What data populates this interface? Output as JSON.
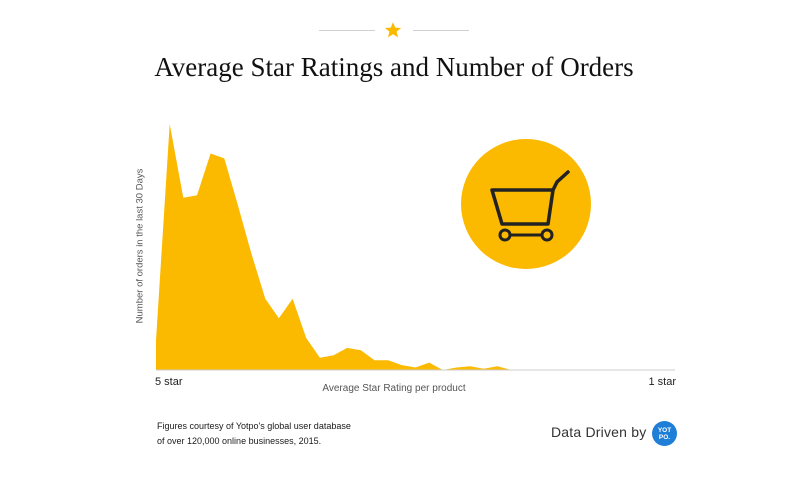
{
  "header": {
    "title": "Average Star Ratings and Number of Orders"
  },
  "chart_data": {
    "type": "area",
    "title": "Average Star Ratings and Number of Orders",
    "xlabel": "Average Star Rating per product",
    "ylabel": "Number of orders in the last 30 Days",
    "x_tick_labels": [
      "5 star",
      "1 star"
    ],
    "xlim": [
      0,
      38
    ],
    "ylim": [
      0,
      100
    ],
    "grid": false,
    "legend": "none",
    "colors": {
      "fill": "#FBB900"
    },
    "series": [
      {
        "name": "Orders",
        "x": [
          0,
          1,
          2,
          3,
          4,
          5,
          6,
          7,
          8,
          9,
          10,
          11,
          12,
          13,
          14,
          15,
          16,
          17,
          18,
          19,
          20,
          21,
          22,
          23,
          24,
          25,
          26,
          27,
          28,
          29,
          30,
          31,
          32,
          33,
          34,
          35,
          36,
          37,
          38
        ],
        "values": [
          12,
          100,
          70,
          71,
          88,
          86,
          67,
          47,
          29,
          21,
          29,
          13,
          5,
          6,
          9,
          8,
          4,
          4,
          2,
          1,
          3,
          0,
          1,
          1.5,
          0.5,
          1.5,
          0,
          0,
          0,
          0,
          0,
          0,
          0,
          0,
          0,
          0,
          0,
          0,
          0
        ]
      }
    ]
  },
  "decor": {
    "top_star_icon": "star-icon",
    "cart_icon": "shopping-cart-icon",
    "accent_color": "#FBB900"
  },
  "footer": {
    "credit_line1": "Figures courtesy of Yotpo's global user database",
    "credit_line2": "of over 120,000 online businesses, 2015.",
    "brand_text": "Data Driven by",
    "logo_line1": "YOT",
    "logo_line2": "PO."
  }
}
